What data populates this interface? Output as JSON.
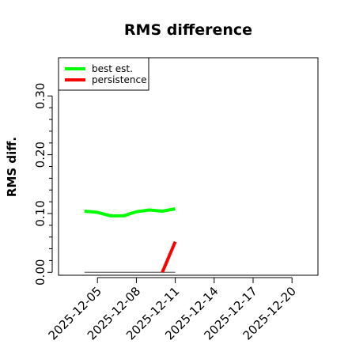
{
  "chart_data": {
    "type": "line",
    "title": "RMS difference",
    "xlabel": "",
    "ylabel": "RMS diff.",
    "x_ticks": [
      "2025-12-05",
      "2025-12-08",
      "2025-12-11",
      "2025-12-14",
      "2025-12-17",
      "2025-12-20"
    ],
    "xlim": [
      "2025-12-02",
      "2025-12-22"
    ],
    "y_ticks": [
      "0.00",
      "0.10",
      "0.20",
      "0.30"
    ],
    "y_tick_values": [
      0.0,
      0.1,
      0.2,
      0.3
    ],
    "ylim": [
      -0.005,
      0.365
    ],
    "grid": false,
    "legend_position": "top-left",
    "series": [
      {
        "name": "best est.",
        "color": "#00ff00",
        "points": [
          {
            "x": "2025-12-04",
            "y": 0.104
          },
          {
            "x": "2025-12-05",
            "y": 0.102
          },
          {
            "x": "2025-12-06",
            "y": 0.096
          },
          {
            "x": "2025-12-07",
            "y": 0.096
          },
          {
            "x": "2025-12-08",
            "y": 0.103
          },
          {
            "x": "2025-12-09",
            "y": 0.106
          },
          {
            "x": "2025-12-10",
            "y": 0.104
          },
          {
            "x": "2025-12-11",
            "y": 0.108
          }
        ]
      },
      {
        "name": "persistence",
        "color": "#ff0000",
        "points": [
          {
            "x": "2025-12-10",
            "y": 0.0
          },
          {
            "x": "2025-12-11",
            "y": 0.052
          }
        ]
      }
    ],
    "reference_line": {
      "color": "#666666",
      "points": [
        {
          "x": "2025-12-04",
          "y": 0.0
        },
        {
          "x": "2025-12-11",
          "y": 0.0
        }
      ]
    }
  }
}
